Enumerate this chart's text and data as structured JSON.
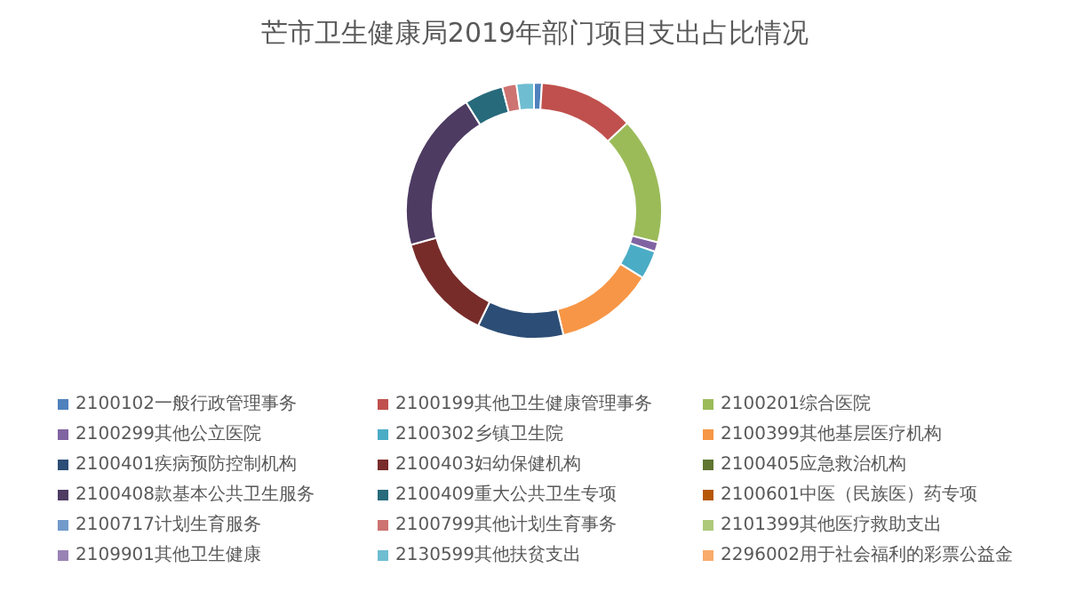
{
  "chart_data": {
    "type": "donut",
    "title": "芒市卫生健康局2019年部门项目支出占比情况",
    "legend": "bottom",
    "categories": [
      "2100102一般行政管理事务",
      "2100199其他卫生健康管理事务",
      "2100201综合医院",
      "2100299其他公立医院",
      "2100302乡镇卫生院",
      "2100399其他基层医疗机构",
      "2100401疾病预防控制机构",
      "2100403妇幼保健机构",
      "2100405应急救治机构",
      "2100408款基本公共卫生服务",
      "2100409重大公共卫生专项",
      "2100601中医（民族医）药专项",
      "2100717计划生育服务",
      "2100799其他计划生育事务",
      "2101399其他医疗救助支出",
      "2109901其他卫生健康",
      "2130599其他扶贫支出",
      "2296002用于社会福利的彩票公益金"
    ],
    "values": [
      1.0,
      12.0,
      16.0,
      1.2,
      3.6,
      12.5,
      10.9,
      13.5,
      0,
      20.4,
      4.9,
      0,
      0,
      1.8,
      0,
      0,
      2.2,
      0
    ],
    "colors": [
      "#4f81bd",
      "#c0504d",
      "#9bbb59",
      "#8064a2",
      "#4bacc6",
      "#f79646",
      "#2c4d75",
      "#772c2a",
      "#5f7530",
      "#4d3b62",
      "#276a7c",
      "#b65708",
      "#729aca",
      "#cd7371",
      "#afc97a",
      "#9983b5",
      "#6fbdd1",
      "#f9ab6b"
    ]
  }
}
